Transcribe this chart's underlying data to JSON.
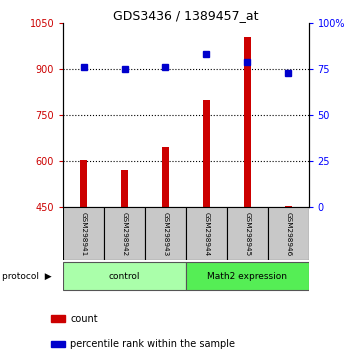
{
  "title": "GDS3436 / 1389457_at",
  "samples": [
    "GSM298941",
    "GSM298942",
    "GSM298943",
    "GSM298944",
    "GSM298945",
    "GSM298946"
  ],
  "counts": [
    605,
    572,
    645,
    800,
    1005,
    452
  ],
  "percentiles": [
    76,
    75,
    76,
    83,
    79,
    73
  ],
  "groups": [
    "control",
    "control",
    "control",
    "Math2 expression",
    "Math2 expression",
    "Math2 expression"
  ],
  "group_colors": {
    "control": "#aaffaa",
    "Math2 expression": "#55ee55"
  },
  "bar_color": "#CC0000",
  "dot_color": "#0000CC",
  "left_ylim": [
    450,
    1050
  ],
  "left_yticks": [
    450,
    600,
    750,
    900,
    1050
  ],
  "right_ylim": [
    0,
    100
  ],
  "right_yticks": [
    0,
    25,
    50,
    75,
    100
  ],
  "right_yticklabels": [
    "0",
    "25",
    "50",
    "75",
    "100%"
  ],
  "dotted_line_values": [
    600,
    750,
    900
  ],
  "legend_count_color": "#CC0000",
  "legend_percentile_color": "#0000CC"
}
